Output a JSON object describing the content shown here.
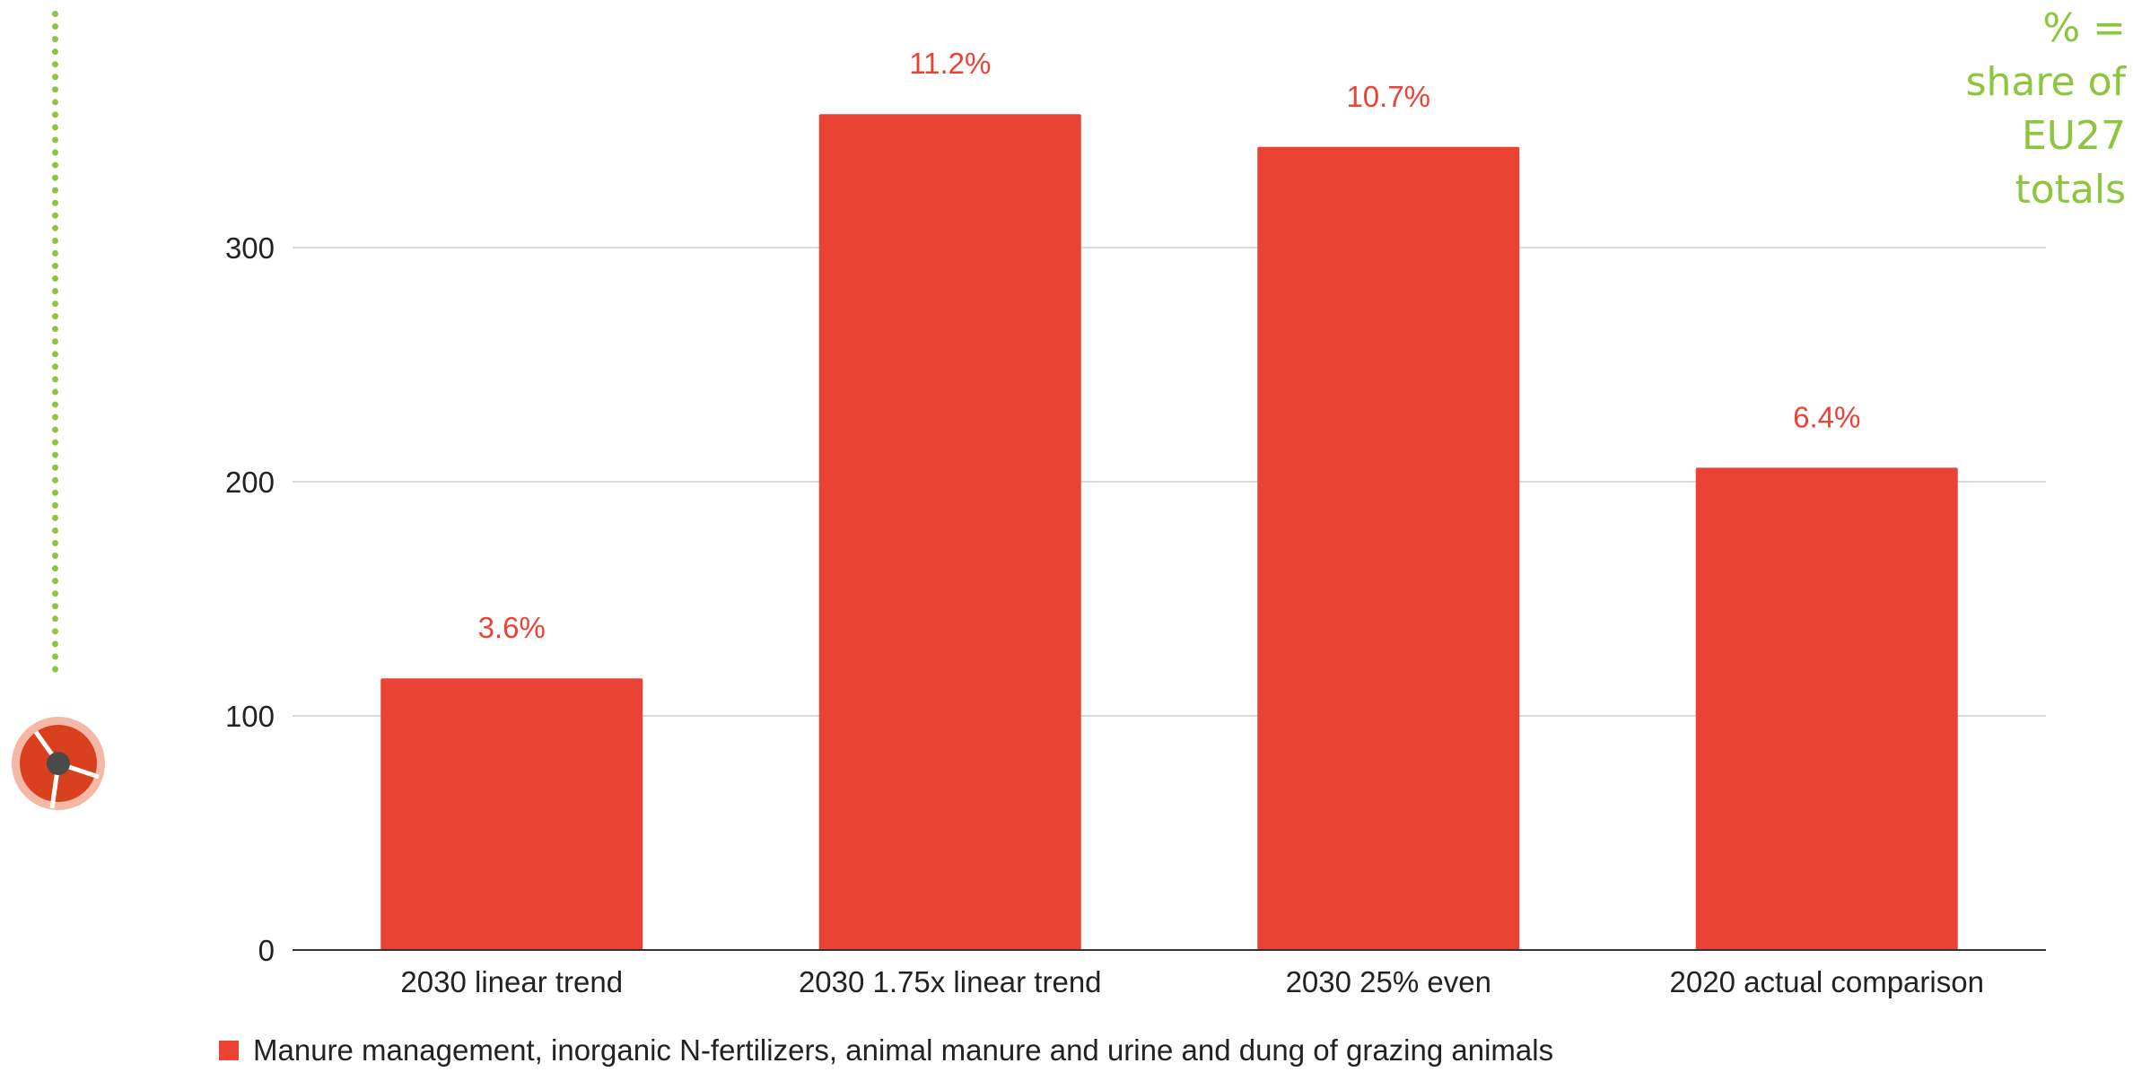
{
  "note": "% =\nshare of\nEU27\ntotals",
  "colors": {
    "bar": "#ea4335",
    "label": "#ea4335",
    "note": "#8cc63f",
    "grid": "#d9d9d9",
    "axis": "#333333"
  },
  "chart_data": {
    "type": "bar",
    "categories": [
      "2030 linear trend",
      "2030 1.75x linear trend",
      "2030 25% even",
      "2020 actual comparison"
    ],
    "series": [
      {
        "name": "Manure management, inorganic N-fertilizers, animal manure and urine and dung of grazing animals",
        "values": [
          116,
          357,
          343,
          206
        ],
        "data_labels": [
          "3.6%",
          "11.2%",
          "10.7%",
          "6.4%"
        ]
      }
    ],
    "yticks": [
      "0",
      "100",
      "200",
      "300"
    ],
    "ylim": [
      0,
      400
    ],
    "grid": true,
    "legend": "bottom-left"
  }
}
